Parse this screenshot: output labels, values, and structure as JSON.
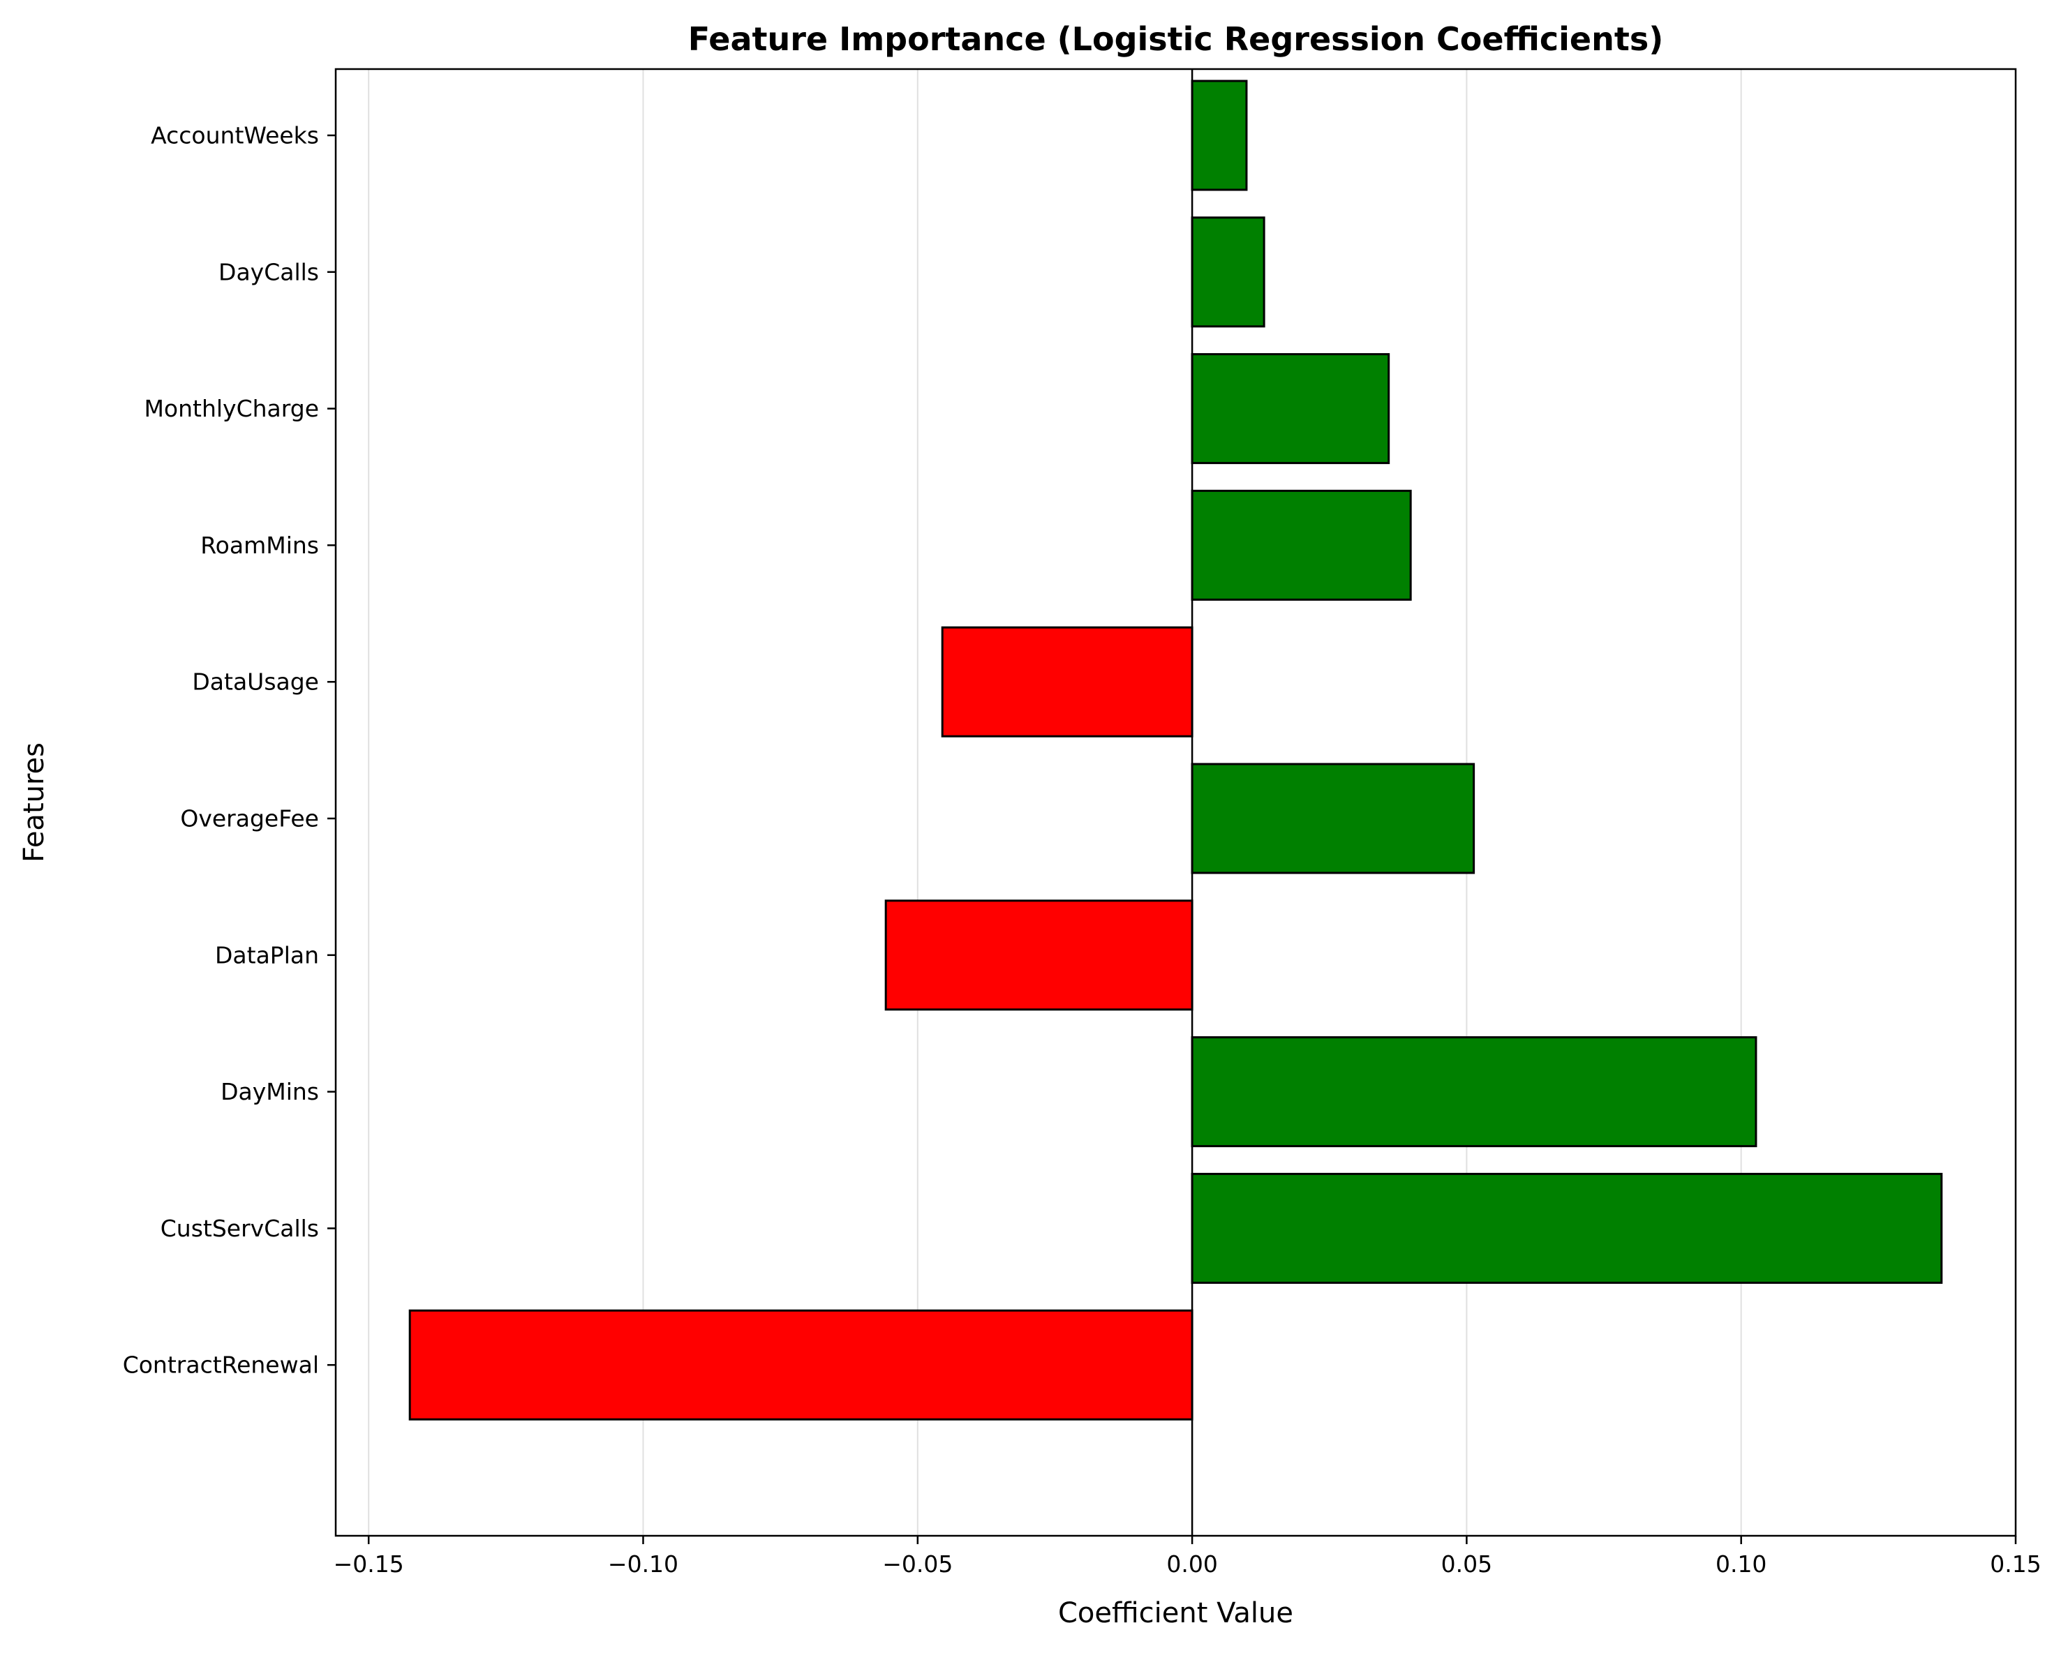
{
  "chart_data": {
    "type": "bar",
    "orientation": "horizontal",
    "title": "Feature Importance (Logistic Regression Coefficients)",
    "xlabel": "Coefficient Value",
    "ylabel": "Features",
    "categories": [
      "ContractRenewal",
      "CustServCalls",
      "DayMins",
      "DataPlan",
      "OverageFee",
      "DataUsage",
      "RoamMins",
      "MonthlyCharge",
      "DayCalls",
      "AccountWeeks"
    ],
    "values": [
      -0.1425,
      0.1365,
      0.1027,
      -0.0558,
      0.0513,
      -0.0455,
      0.0398,
      0.0358,
      0.0131,
      0.0099
    ],
    "xlim": [
      -0.156,
      0.15
    ],
    "xticks": [
      -0.15,
      -0.1,
      -0.05,
      0.0,
      0.05,
      0.1,
      0.15
    ],
    "xtick_labels": [
      "−0.15",
      "−0.10",
      "−0.05",
      "0.00",
      "0.05",
      "0.10",
      "0.15"
    ],
    "grid": "x",
    "colors": {
      "positive": "#008000",
      "negative": "#ff0000",
      "edge": "#000000",
      "grid": "#e0e0e0",
      "zero_line": "#000000"
    }
  }
}
